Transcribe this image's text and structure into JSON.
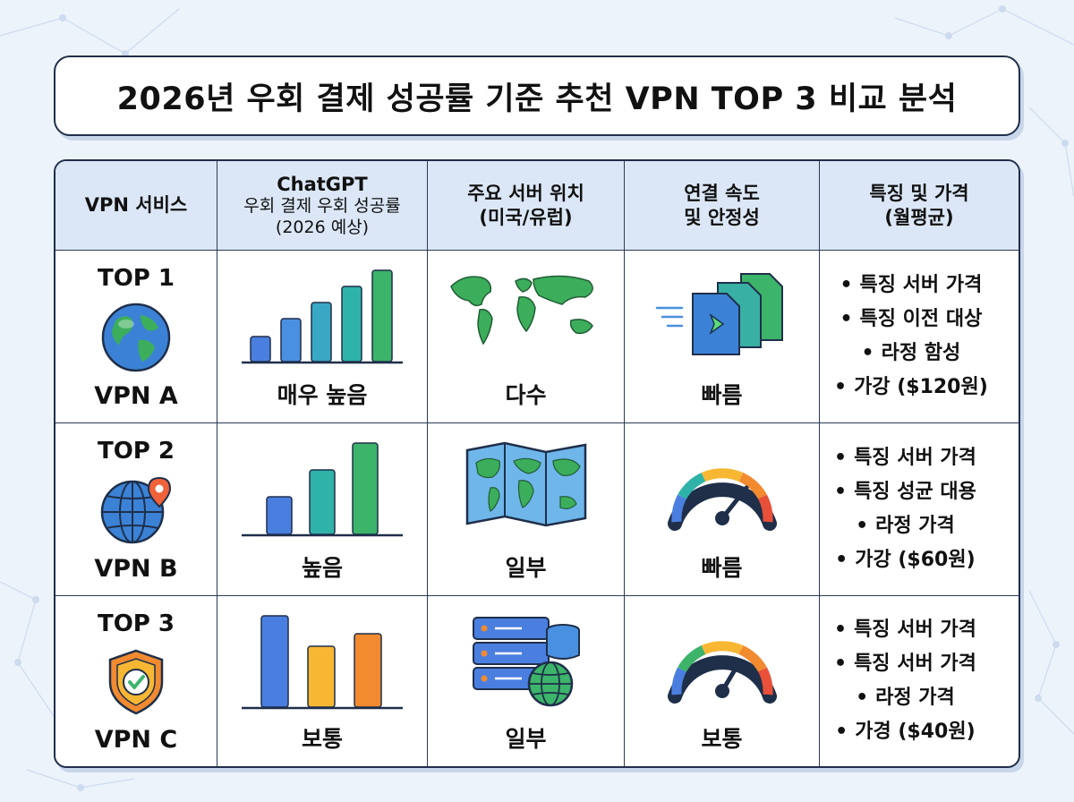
{
  "title": "2026년 우회 결제 성공률 기준 추천 VPN TOP 3 비교 분석",
  "headers": {
    "service": "VPN 서비스",
    "success_line1": "ChatGPT",
    "success_line2": "우회 결제 우회 성공률",
    "success_line3": "(2026 예상)",
    "server_line1": "주요 서버 위치",
    "server_line2": "(미국/유럽)",
    "speed_line1": "연결 속도",
    "speed_line2": "및 안정성",
    "feature_line1": "특징 및 가격",
    "feature_line2": "(월평균)"
  },
  "rows": [
    {
      "rank": "TOP 1",
      "name": "VPN A",
      "icon": "globe-icon",
      "success": "매우 높음",
      "success_bars": [
        0.3,
        0.5,
        0.68,
        0.84,
        1.0
      ],
      "servers": "다수",
      "server_icon": "world-map-icon",
      "speed": "빠름",
      "speed_icon": "fast-file-transfer-icon",
      "features": [
        "특징 서버 가격",
        "특징 이전 대상",
        "라정 함성",
        "가강 ($120원)"
      ]
    },
    {
      "rank": "TOP 2",
      "name": "VPN B",
      "icon": "globe-pin-icon",
      "success": "높음",
      "success_bars": [
        0.4,
        0.7,
        1.0
      ],
      "servers": "일부",
      "server_icon": "folded-map-icon",
      "speed": "빠름",
      "speed_icon": "speedometer-icon",
      "features": [
        "특징 서버 가격",
        "특징 성균 대용",
        "라정 가격",
        "가강 ($60원)"
      ]
    },
    {
      "rank": "TOP 3",
      "name": "VPN C",
      "icon": "shield-check-icon",
      "success": "보통",
      "success_bars": [
        1.0,
        0.67,
        0.8
      ],
      "servers": "일부",
      "server_icon": "server-globe-icon",
      "speed": "보통",
      "speed_icon": "speedometer-icon",
      "features": [
        "특징 서버 가격",
        "특징 서버 가격",
        "라정 가격",
        "가경 ($40원)"
      ]
    }
  ],
  "bullet": "•",
  "colors": {
    "header_bg": "#dbe7f7",
    "border": "#1f2f4a",
    "bar_blue": "#4a7fe0",
    "bar_teal": "#2fb3a8",
    "bar_green": "#3cb46a",
    "bar_yellow": "#f7b733",
    "bar_orange": "#f28a30"
  }
}
